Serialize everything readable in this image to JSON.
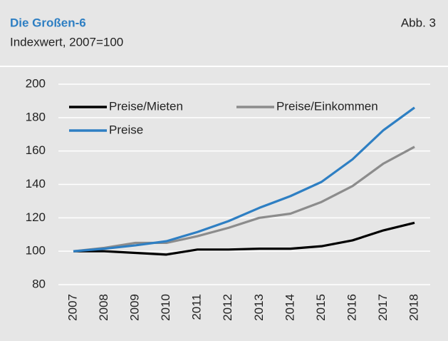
{
  "chart_data": {
    "type": "line",
    "title": "Die Großen-6",
    "subtitle": "Indexwert, 2007=100",
    "figure_label": "Abb. 3",
    "categories": [
      "2007",
      "2008",
      "2009",
      "2010",
      "2011",
      "2012",
      "2013",
      "2014",
      "2015",
      "2016",
      "2017",
      "2018"
    ],
    "series": [
      {
        "name": "Preise/Mieten",
        "color": "#000000",
        "values": [
          100,
          100,
          99,
          98,
          101,
          101,
          101.5,
          101.5,
          103,
          106.5,
          112.5,
          117
        ]
      },
      {
        "name": "Preise/Einkommen",
        "color": "#8c8c8c",
        "values": [
          100,
          102,
          105,
          105,
          109,
          114,
          120,
          122.5,
          129.5,
          139,
          152.5,
          162.5
        ]
      },
      {
        "name": "Preise",
        "color": "#2e7fc3",
        "values": [
          100,
          101.5,
          103.5,
          106,
          111.5,
          118,
          126,
          133,
          141.5,
          155,
          172.5,
          186
        ]
      }
    ],
    "ylim": [
      80,
      200
    ],
    "yticks": [
      80,
      100,
      120,
      140,
      160,
      180,
      200
    ],
    "grid": true
  }
}
